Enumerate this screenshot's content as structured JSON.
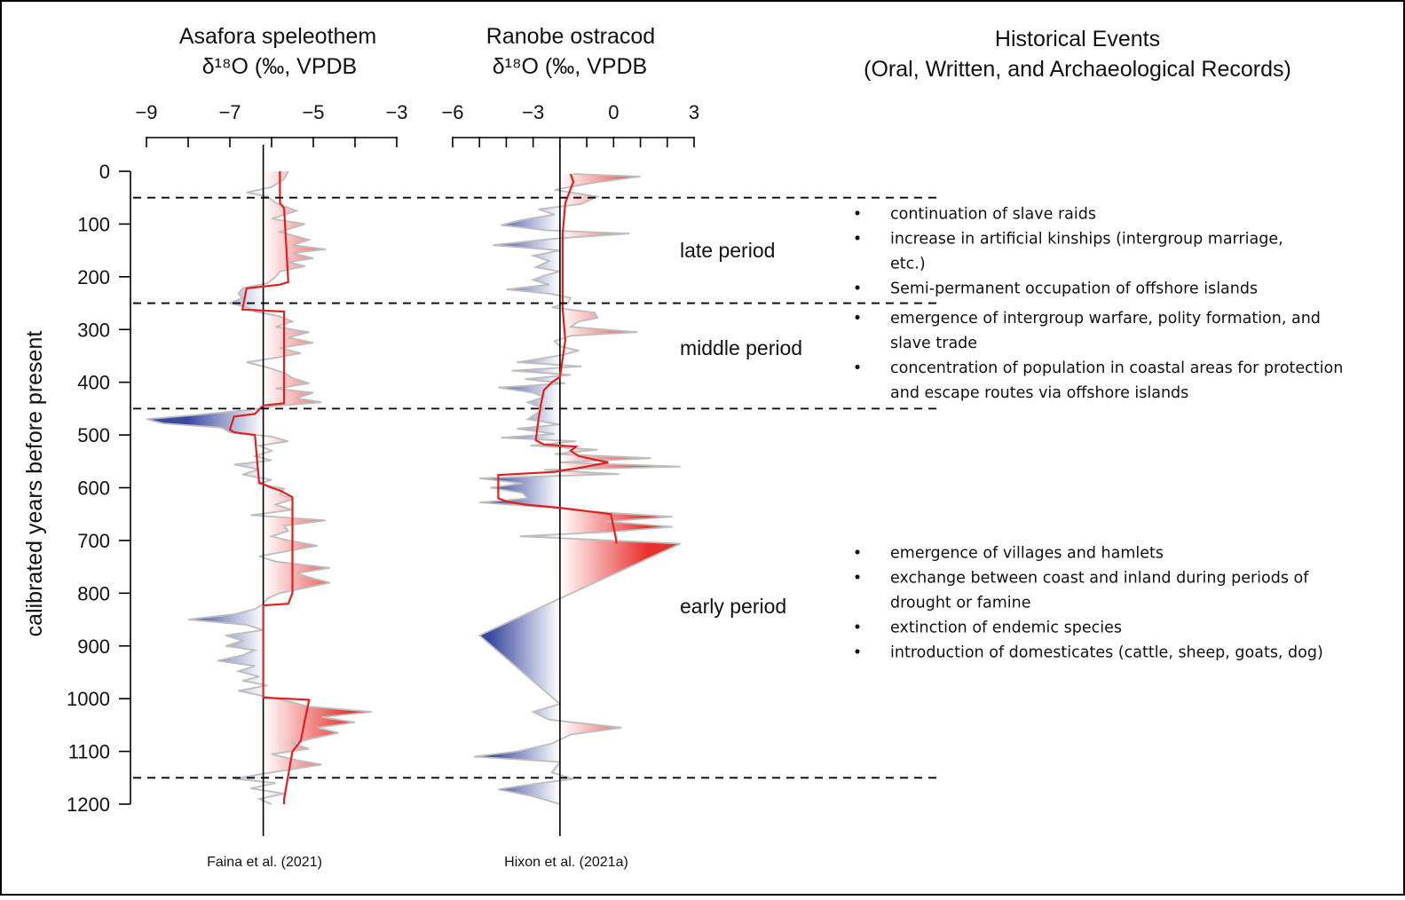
{
  "y_axis": {
    "label": "calibrated years before present",
    "ticks": [
      0,
      100,
      200,
      300,
      400,
      500,
      600,
      700,
      800,
      900,
      1000,
      1100,
      1200
    ],
    "range": [
      0,
      1200
    ],
    "reversed": true
  },
  "periods": {
    "boundaries": [
      50,
      250,
      450,
      1150
    ],
    "labels": [
      {
        "text": "late period",
        "year": 150
      },
      {
        "text": "middle period",
        "year": 335
      },
      {
        "text": "early period",
        "year": 825
      }
    ]
  },
  "events": {
    "title_line1": "Historical Events",
    "title_line2": "(Oral, Written, and Archaeological Records)",
    "groups": [
      {
        "start_year": 80,
        "items": [
          {
            "lines": [
              "continuation of slave raids"
            ]
          },
          {
            "lines": [
              "increase in artificial kinships (intergroup marriage,",
              "etc.)"
            ]
          },
          {
            "lines": [
              "Semi-permanent occupation of offshore islands"
            ]
          }
        ]
      },
      {
        "start_year": 278,
        "items": [
          {
            "lines": [
              "emergence of intergroup warfare, polity formation, and",
              "slave trade"
            ]
          },
          {
            "lines": [
              "concentration of population in coastal areas for protection",
              "and escape routes via offshore islands"
            ]
          }
        ]
      },
      {
        "start_year": 723,
        "items": [
          {
            "lines": [
              "emergence of villages and hamlets"
            ]
          },
          {
            "lines": [
              "exchange between coast and inland during periods of",
              "drought or famine"
            ]
          },
          {
            "lines": [
              "extinction of endemic species"
            ]
          },
          {
            "lines": [
              "introduction of domesticates (cattle, sheep, goats, dog)"
            ]
          }
        ]
      }
    ]
  },
  "chart_data": [
    {
      "type": "line",
      "title_line1": "Asafora speleothem",
      "title_line2": "δ¹⁸O (‰, VPDB",
      "source": "Faina et al. (2021)",
      "xlim": [
        -9,
        -3
      ],
      "x_tick_labels": [
        -9,
        -7,
        -5,
        -3
      ],
      "x_minor_step": 1,
      "reference": -6.2,
      "colors": {
        "low": "#3a4a9e",
        "high": "#e8312f",
        "raw": "#bdbdbd",
        "mean": "#e02020"
      },
      "raw": [
        [
          0,
          -5.6
        ],
        [
          15,
          -5.7
        ],
        [
          30,
          -6.0
        ],
        [
          40,
          -6.6
        ],
        [
          48,
          -6.1
        ],
        [
          60,
          -5.9
        ],
        [
          75,
          -5.4
        ],
        [
          90,
          -6.0
        ],
        [
          100,
          -5.2
        ],
        [
          115,
          -5.8
        ],
        [
          130,
          -5.1
        ],
        [
          140,
          -5.5
        ],
        [
          148,
          -4.7
        ],
        [
          155,
          -5.5
        ],
        [
          165,
          -5.0
        ],
        [
          172,
          -5.6
        ],
        [
          180,
          -5.2
        ],
        [
          190,
          -5.8
        ],
        [
          200,
          -5.9
        ],
        [
          212,
          -6.1
        ],
        [
          222,
          -6.7
        ],
        [
          232,
          -6.8
        ],
        [
          240,
          -6.7
        ],
        [
          250,
          -7.0
        ],
        [
          258,
          -6.6
        ],
        [
          266,
          -6.4
        ],
        [
          275,
          -5.8
        ],
        [
          285,
          -5.5
        ],
        [
          295,
          -5.9
        ],
        [
          305,
          -5.1
        ],
        [
          315,
          -5.6
        ],
        [
          325,
          -5.0
        ],
        [
          335,
          -5.8
        ],
        [
          345,
          -5.3
        ],
        [
          355,
          -6.0
        ],
        [
          362,
          -6.6
        ],
        [
          372,
          -6.1
        ],
        [
          382,
          -5.7
        ],
        [
          392,
          -5.5
        ],
        [
          402,
          -5.1
        ],
        [
          412,
          -5.9
        ],
        [
          420,
          -5.0
        ],
        [
          430,
          -5.4
        ],
        [
          438,
          -4.8
        ],
        [
          445,
          -5.9
        ],
        [
          452,
          -6.5
        ],
        [
          462,
          -7.8
        ],
        [
          470,
          -9.0
        ],
        [
          478,
          -8.6
        ],
        [
          486,
          -7.2
        ],
        [
          495,
          -7.0
        ],
        [
          503,
          -6.0
        ],
        [
          512,
          -5.6
        ],
        [
          520,
          -6.3
        ],
        [
          530,
          -6.0
        ],
        [
          540,
          -6.4
        ],
        [
          548,
          -6.0
        ],
        [
          556,
          -6.9
        ],
        [
          565,
          -6.3
        ],
        [
          575,
          -6.7
        ],
        [
          585,
          -6.0
        ],
        [
          593,
          -6.3
        ],
        [
          602,
          -5.7
        ],
        [
          612,
          -5.8
        ],
        [
          622,
          -5.5
        ],
        [
          632,
          -5.9
        ],
        [
          642,
          -5.5
        ],
        [
          652,
          -6.5
        ],
        [
          662,
          -4.7
        ],
        [
          672,
          -5.7
        ],
        [
          682,
          -5.6
        ],
        [
          692,
          -6.0
        ],
        [
          700,
          -5.6
        ],
        [
          710,
          -4.9
        ],
        [
          720,
          -5.6
        ],
        [
          730,
          -6.3
        ],
        [
          740,
          -5.9
        ],
        [
          752,
          -4.6
        ],
        [
          762,
          -5.4
        ],
        [
          772,
          -5.0
        ],
        [
          780,
          -4.6
        ],
        [
          790,
          -5.2
        ],
        [
          800,
          -5.8
        ],
        [
          810,
          -6.1
        ],
        [
          820,
          -6.2
        ],
        [
          830,
          -6.4
        ],
        [
          840,
          -6.9
        ],
        [
          850,
          -8.0
        ],
        [
          860,
          -6.6
        ],
        [
          870,
          -6.2
        ],
        [
          880,
          -7.1
        ],
        [
          890,
          -6.7
        ],
        [
          900,
          -7.1
        ],
        [
          908,
          -6.4
        ],
        [
          918,
          -6.7
        ],
        [
          928,
          -7.3
        ],
        [
          938,
          -6.4
        ],
        [
          948,
          -6.8
        ],
        [
          958,
          -6.3
        ],
        [
          966,
          -6.7
        ],
        [
          975,
          -6.1
        ],
        [
          985,
          -6.8
        ],
        [
          995,
          -6.2
        ],
        [
          1005,
          -5.6
        ],
        [
          1015,
          -5.1
        ],
        [
          1025,
          -3.6
        ],
        [
          1035,
          -4.8
        ],
        [
          1045,
          -4.0
        ],
        [
          1055,
          -4.9
        ],
        [
          1065,
          -4.4
        ],
        [
          1075,
          -5.0
        ],
        [
          1085,
          -5.5
        ],
        [
          1095,
          -5.1
        ],
        [
          1105,
          -6.0
        ],
        [
          1115,
          -5.5
        ],
        [
          1125,
          -4.8
        ],
        [
          1135,
          -5.6
        ],
        [
          1145,
          -6.4
        ],
        [
          1152,
          -6.9
        ],
        [
          1160,
          -5.9
        ],
        [
          1170,
          -6.5
        ],
        [
          1180,
          -5.7
        ],
        [
          1190,
          -6.3
        ],
        [
          1200,
          -6.0
        ]
      ],
      "mean": [
        [
          0,
          -5.8
        ],
        [
          60,
          -5.8
        ],
        [
          70,
          -5.7
        ],
        [
          210,
          -5.6
        ],
        [
          215,
          -5.8
        ],
        [
          222,
          -6.6
        ],
        [
          262,
          -6.7
        ],
        [
          266,
          -5.7
        ],
        [
          440,
          -5.7
        ],
        [
          444,
          -6.2
        ],
        [
          460,
          -6.4
        ],
        [
          465,
          -6.9
        ],
        [
          490,
          -7.0
        ],
        [
          495,
          -6.9
        ],
        [
          500,
          -6.4
        ],
        [
          590,
          -6.3
        ],
        [
          600,
          -6.0
        ],
        [
          605,
          -5.8
        ],
        [
          618,
          -5.5
        ],
        [
          800,
          -5.5
        ],
        [
          820,
          -5.6
        ],
        [
          823,
          -6.2
        ],
        [
          998,
          -6.2
        ],
        [
          1002,
          -5.1
        ],
        [
          1040,
          -5.2
        ],
        [
          1080,
          -5.3
        ],
        [
          1100,
          -5.5
        ],
        [
          1190,
          -5.7
        ],
        [
          1200,
          -5.7
        ]
      ]
    },
    {
      "type": "line",
      "title_line1": "Ranobe ostracod",
      "title_line2": "δ¹⁸O (‰, VPDB",
      "source": "Hixon et al. (2021a)",
      "xlim": [
        -6,
        3
      ],
      "x_tick_labels": [
        -6,
        -3,
        0,
        3
      ],
      "x_minor_step": 1,
      "reference": -2,
      "colors": {
        "low": "#3a4a9e",
        "high": "#e8312f",
        "raw": "#bdbdbd",
        "mean": "#e02020"
      },
      "raw": [
        [
          5,
          -1.5
        ],
        [
          10,
          1.0
        ],
        [
          22,
          -0.8
        ],
        [
          35,
          -2.2
        ],
        [
          48,
          -0.6
        ],
        [
          62,
          -1.2
        ],
        [
          72,
          -2.8
        ],
        [
          82,
          -2.2
        ],
        [
          92,
          -3.4
        ],
        [
          102,
          -4.2
        ],
        [
          112,
          -2.5
        ],
        [
          118,
          0.6
        ],
        [
          128,
          -2.3
        ],
        [
          140,
          -4.5
        ],
        [
          150,
          -2.0
        ],
        [
          160,
          -3.0
        ],
        [
          170,
          -2.4
        ],
        [
          182,
          -2.9
        ],
        [
          190,
          -2.0
        ],
        [
          198,
          -2.6
        ],
        [
          206,
          -3.0
        ],
        [
          215,
          -2.4
        ],
        [
          224,
          -4.0
        ],
        [
          232,
          -2.4
        ],
        [
          240,
          -1.6
        ],
        [
          250,
          -1.7
        ],
        [
          258,
          -2.3
        ],
        [
          268,
          -0.7
        ],
        [
          278,
          -0.6
        ],
        [
          285,
          -1.3
        ],
        [
          295,
          -1.6
        ],
        [
          305,
          0.9
        ],
        [
          312,
          -1.6
        ],
        [
          322,
          -2.2
        ],
        [
          332,
          -2.0
        ],
        [
          340,
          -1.3
        ],
        [
          348,
          -1.9
        ],
        [
          356,
          -2.8
        ],
        [
          362,
          -3.6
        ],
        [
          370,
          -1.2
        ],
        [
          378,
          -3.8
        ],
        [
          386,
          -1.6
        ],
        [
          394,
          -3.3
        ],
        [
          402,
          -1.8
        ],
        [
          410,
          -4.3
        ],
        [
          420,
          -3.0
        ],
        [
          428,
          -2.6
        ],
        [
          438,
          -3.2
        ],
        [
          450,
          -2.6
        ],
        [
          460,
          -2.9
        ],
        [
          470,
          -3.2
        ],
        [
          480,
          -2.0
        ],
        [
          488,
          -3.6
        ],
        [
          498,
          -2.2
        ],
        [
          505,
          -4.2
        ],
        [
          512,
          -1.4
        ],
        [
          520,
          -3.1
        ],
        [
          528,
          -0.6
        ],
        [
          536,
          -2.2
        ],
        [
          544,
          1.4
        ],
        [
          552,
          -2.0
        ],
        [
          560,
          2.5
        ],
        [
          566,
          -2.6
        ],
        [
          574,
          0.2
        ],
        [
          582,
          -5.0
        ],
        [
          592,
          -3.4
        ],
        [
          600,
          -4.6
        ],
        [
          610,
          -3.4
        ],
        [
          620,
          -3.2
        ],
        [
          628,
          -5.0
        ],
        [
          638,
          -2.2
        ],
        [
          645,
          -1.0
        ],
        [
          655,
          2.2
        ],
        [
          664,
          -0.3
        ],
        [
          674,
          2.2
        ],
        [
          684,
          -0.2
        ],
        [
          692,
          -3.5
        ],
        [
          706,
          2.5
        ],
        [
          810,
          -2.0
        ],
        [
          880,
          -5.0
        ],
        [
          1010,
          -2.0
        ],
        [
          1025,
          -3.0
        ],
        [
          1040,
          -2.4
        ],
        [
          1055,
          0.3
        ],
        [
          1068,
          -1.6
        ],
        [
          1085,
          -2.3
        ],
        [
          1100,
          -3.6
        ],
        [
          1110,
          -5.2
        ],
        [
          1120,
          -2.0
        ],
        [
          1140,
          -2.3
        ],
        [
          1152,
          -1.5
        ],
        [
          1162,
          -3.0
        ],
        [
          1172,
          -4.3
        ],
        [
          1185,
          -3.0
        ],
        [
          1200,
          -2.0
        ]
      ],
      "mean": [
        [
          5,
          -1.6
        ],
        [
          20,
          -1.5
        ],
        [
          60,
          -1.8
        ],
        [
          120,
          -1.9
        ],
        [
          180,
          -1.9
        ],
        [
          260,
          -1.9
        ],
        [
          320,
          -1.8
        ],
        [
          390,
          -2.0
        ],
        [
          400,
          -2.3
        ],
        [
          410,
          -2.5
        ],
        [
          415,
          -2.6
        ],
        [
          440,
          -2.7
        ],
        [
          470,
          -2.8
        ],
        [
          510,
          -2.9
        ],
        [
          518,
          -2.6
        ],
        [
          522,
          -1.4
        ],
        [
          530,
          -1.6
        ],
        [
          540,
          -1.3
        ],
        [
          552,
          -0.2
        ],
        [
          560,
          -1.0
        ],
        [
          570,
          -2.2
        ],
        [
          576,
          -4.3
        ],
        [
          620,
          -4.3
        ],
        [
          626,
          -4.0
        ],
        [
          632,
          -3.3
        ],
        [
          638,
          -2.0
        ],
        [
          650,
          -0.1
        ],
        [
          700,
          0.1
        ],
        [
          706,
          0.1
        ]
      ]
    }
  ]
}
